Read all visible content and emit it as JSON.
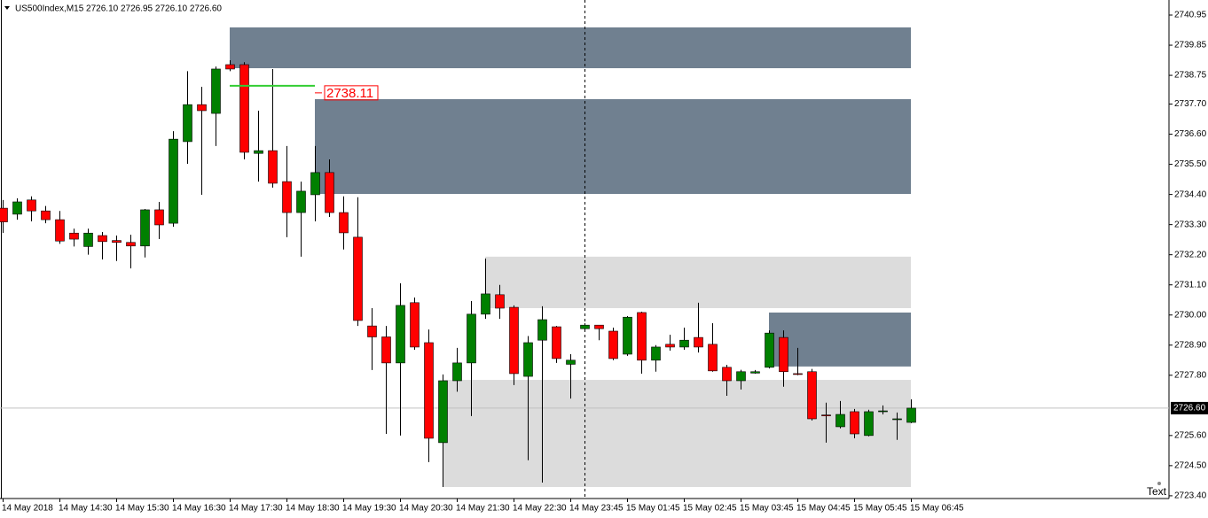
{
  "chart_data": {
    "type": "candlestick",
    "title": "US500Index,M15  2726.10 2726.95 2726.10 2726.60",
    "categories": [
      "14 May 2018",
      null,
      null,
      null,
      "14 May 14:30",
      null,
      null,
      null,
      "14 May 15:30",
      null,
      null,
      null,
      "14 May 16:30",
      null,
      null,
      null,
      "14 May 17:30",
      null,
      null,
      null,
      "14 May 18:30",
      null,
      null,
      null,
      "14 May 19:30",
      null,
      null,
      null,
      "14 May 20:30",
      null,
      null,
      null,
      "14 May 21:30",
      null,
      null,
      null,
      "14 May 22:30",
      null,
      null,
      null,
      "14 May 23:45",
      null,
      null,
      null,
      "15 May 01:45",
      null,
      null,
      null,
      "15 May 02:45",
      null,
      null,
      null,
      "15 May 03:45",
      null,
      null,
      null,
      "15 May 04:45",
      null,
      null,
      null,
      "15 May 05:45",
      null,
      null,
      null,
      "15 May 06:45"
    ],
    "open": [
      2733.9,
      2733.68,
      2734.2,
      2733.8,
      2733.48,
      2732.99,
      2732.5,
      2732.9,
      2732.72,
      2732.65,
      2732.52,
      2733.84,
      2733.35,
      2736.33,
      2737.68,
      2737.36,
      2739.14,
      2739.14,
      2735.9,
      2736.0,
      2734.87,
      2733.74,
      2734.39,
      2735.2,
      2733.74,
      2732.84,
      2729.6,
      2729.2,
      2728.25,
      2730.45,
      2728.99,
      2725.34,
      2727.6,
      2728.25,
      2730.03,
      2730.74,
      2730.28,
      2727.76,
      2729.08,
      2729.57,
      2728.2,
      2729.5,
      2729.63,
      2729.41,
      2728.57,
      2730.09,
      2728.35,
      2728.93,
      2728.83,
      2729.18,
      2728.93,
      2728.09,
      2727.6,
      2727.88,
      2728.09,
      2729.18,
      2727.86,
      2727.93,
      2726.35,
      2725.92,
      2726.47,
      2725.6,
      2726.47,
      2726.2,
      2726.08
    ],
    "high": [
      2734.2,
      2734.26,
      2734.33,
      2733.98,
      2733.8,
      2733.15,
      2733.15,
      2733.03,
      2732.9,
      2732.93,
      2733.87,
      2734.13,
      2736.71,
      2738.9,
      2738.33,
      2739.07,
      2739.3,
      2739.23,
      2737.46,
      2738.98,
      2736.17,
      2734.87,
      2736.17,
      2735.68,
      2734.33,
      2734.3,
      2730.25,
      2729.6,
      2731.16,
      2730.64,
      2729.47,
      2727.83,
      2728.8,
      2730.51,
      2732.06,
      2731.1,
      2730.35,
      2729.23,
      2730.32,
      2729.6,
      2728.57,
      2729.7,
      2729.63,
      2729.54,
      2729.96,
      2730.12,
      2728.9,
      2729.28,
      2729.54,
      2730.45,
      2729.7,
      2728.18,
      2728.0,
      2727.99,
      2729.44,
      2729.44,
      2728.8,
      2728.03,
      2726.8,
      2726.86,
      2726.57,
      2726.54,
      2726.7,
      2726.44,
      2726.92
    ],
    "low": [
      2733.0,
      2733.48,
      2733.42,
      2733.35,
      2732.6,
      2732.5,
      2732.2,
      2732.03,
      2731.97,
      2731.7,
      2732.1,
      2732.77,
      2733.22,
      2735.52,
      2734.39,
      2736.17,
      2738.9,
      2735.68,
      2734.87,
      2734.65,
      2732.84,
      2732.13,
      2733.42,
      2733.58,
      2732.39,
      2729.6,
      2727.99,
      2725.66,
      2725.6,
      2728.73,
      2724.63,
      2723.72,
      2727.2,
      2726.31,
      2729.86,
      2729.86,
      2727.44,
      2724.7,
      2723.88,
      2728.25,
      2726.95,
      2729.44,
      2729.08,
      2728.35,
      2728.51,
      2727.86,
      2727.93,
      2728.7,
      2728.73,
      2728.63,
      2727.93,
      2727.05,
      2727.28,
      2727.86,
      2728.05,
      2727.38,
      2727.8,
      2726.15,
      2725.34,
      2725.86,
      2725.5,
      2725.57,
      2726.37,
      2725.44,
      2726.05
    ],
    "close": [
      2733.4,
      2734.13,
      2733.8,
      2733.48,
      2732.7,
      2732.77,
      2732.99,
      2732.68,
      2732.65,
      2732.52,
      2733.84,
      2733.29,
      2736.42,
      2737.68,
      2737.46,
      2738.98,
      2738.98,
      2735.94,
      2736.0,
      2734.81,
      2733.74,
      2734.52,
      2735.2,
      2733.74,
      2733.0,
      2729.8,
      2729.2,
      2728.25,
      2730.35,
      2728.83,
      2725.5,
      2727.6,
      2728.25,
      2730.03,
      2730.77,
      2730.25,
      2727.86,
      2728.99,
      2729.83,
      2728.41,
      2728.35,
      2729.63,
      2729.5,
      2728.41,
      2729.92,
      2728.35,
      2728.83,
      2728.83,
      2729.08,
      2728.83,
      2727.96,
      2727.6,
      2727.93,
      2727.93,
      2729.34,
      2727.93,
      2727.83,
      2726.21,
      2726.33,
      2726.37,
      2725.66,
      2726.47,
      2726.5,
      2726.21,
      2726.6
    ],
    "up_color": "#008000",
    "down_color": "#ff0000",
    "ylim": [
      2723.3,
      2741.5
    ],
    "yticks": [
      2740.95,
      2739.85,
      2738.75,
      {
        "value": 2737.7,
        "label": "2737.70"
      },
      {
        "value": 2736.6,
        "label": "2736.60"
      },
      {
        "value": 2735.5,
        "label": "2735.50"
      },
      {
        "value": 2734.4,
        "label": "2734.40"
      },
      {
        "value": 2733.3,
        "label": "2733.30"
      },
      {
        "value": 2732.2,
        "label": "2732.20"
      },
      {
        "value": 2731.1,
        "label": "2731.10"
      },
      {
        "value": 2730,
        "label": "2730.00"
      },
      {
        "value": 2728.9,
        "label": "2728.90"
      },
      {
        "value": 2727.8,
        "label": "2727.80"
      },
      {
        "value": 2725.6,
        "label": "2725.60"
      },
      {
        "value": 2724.5,
        "label": "2724.50"
      },
      {
        "value": 2723.4,
        "label": "2723.40"
      }
    ],
    "zones": [
      {
        "x0": 16,
        "x1": 64,
        "y0": 2739.01,
        "y1": 2740.5,
        "color": "#708090"
      },
      {
        "x0": 22,
        "x1": 64,
        "y0": 2734.42,
        "y1": 2737.88,
        "color": "#708090"
      },
      {
        "x0": 54,
        "x1": 64,
        "y0": 2728.12,
        "y1": 2730.09,
        "color": "#708090"
      },
      {
        "x0": 34,
        "x1": 64,
        "y0": 2730.25,
        "y1": 2732.13,
        "color": "#dcdcdc"
      },
      {
        "x0": 31,
        "x1": 64,
        "y0": 2723.72,
        "y1": 2727.63,
        "color": "#dcdcdc"
      }
    ],
    "level_line": {
      "x0": 16,
      "x1": 22,
      "value": 2738.37,
      "color": "#32cd32"
    },
    "price_marker": {
      "value": 2738.11,
      "color": "#ff0000"
    },
    "current_price": {
      "value": 2726.6,
      "label": "2726.60"
    },
    "vline_index": 41,
    "corner_label": "Text"
  }
}
